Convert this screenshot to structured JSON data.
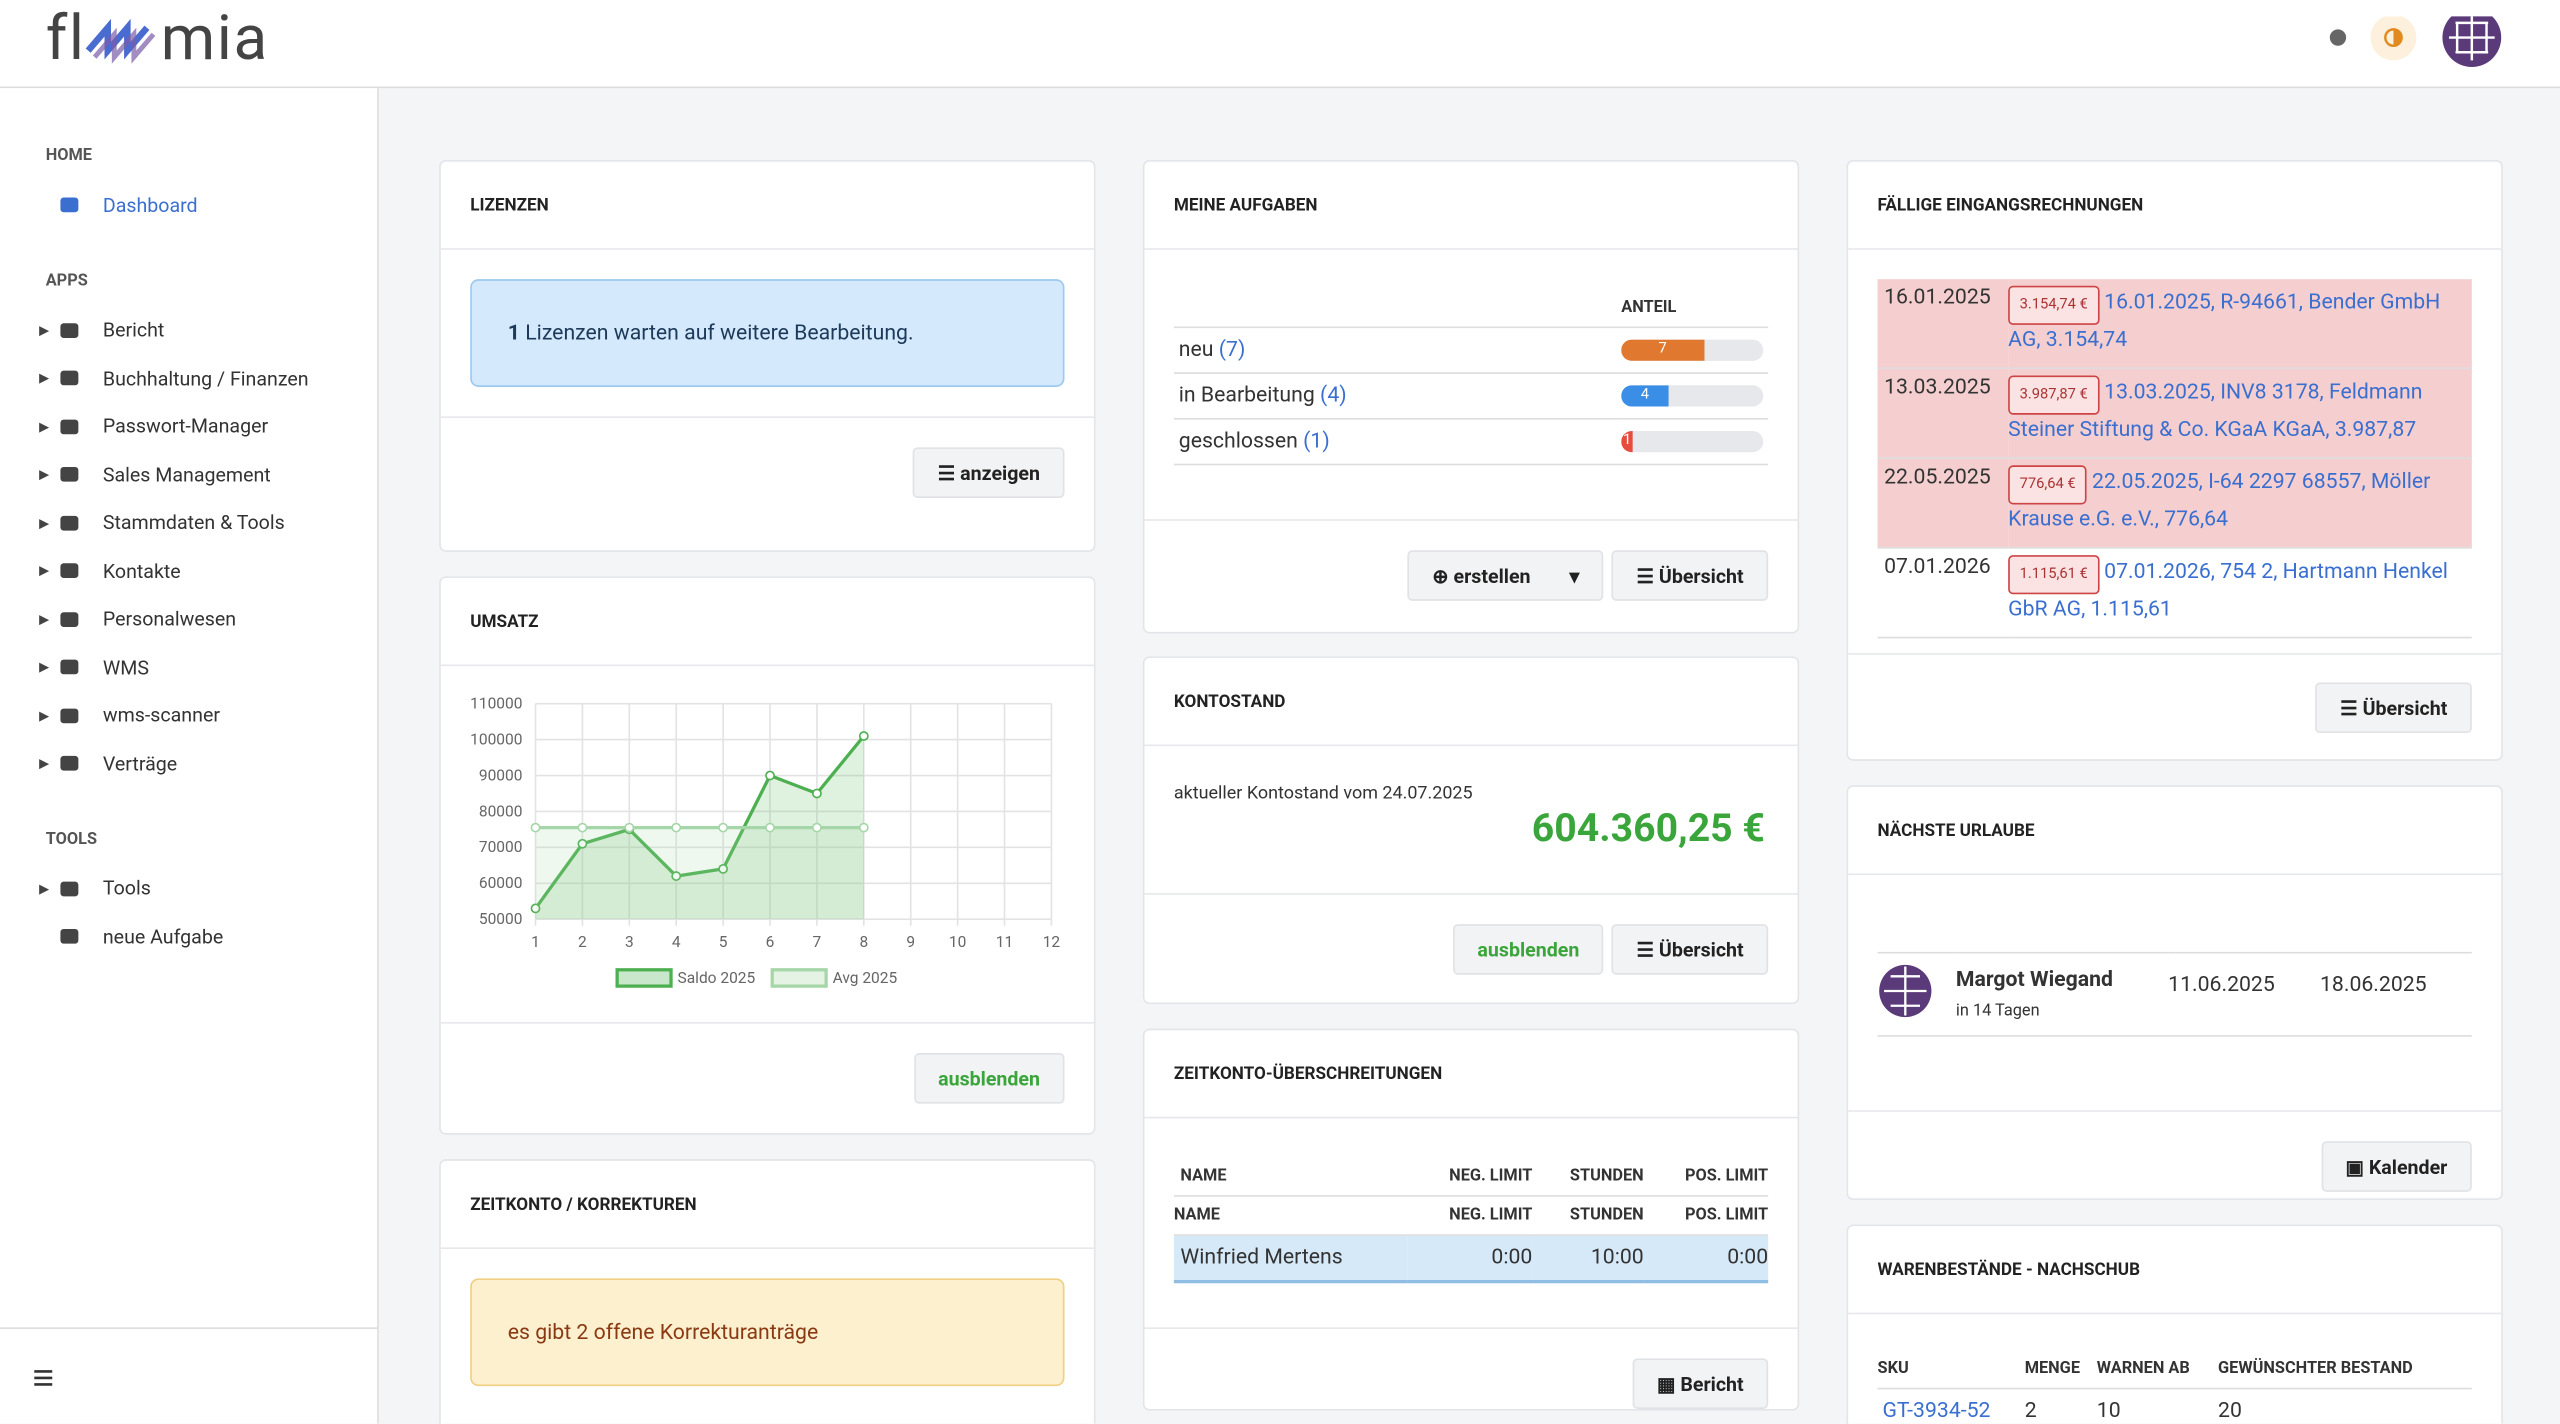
{
  "header": {
    "logo": {
      "start": "fl",
      "end": "mia"
    }
  },
  "sidebar": {
    "sections": [
      {
        "title": "HOME",
        "items": [
          "Dashboard"
        ]
      },
      {
        "title": "APPS",
        "items": [
          "Bericht",
          "Buchhaltung / Finanzen",
          "Passwort-Manager",
          "Sales Management",
          "Stammdaten & Tools",
          "Kontakte",
          "Personalwesen",
          "WMS",
          "wms-scanner",
          "Verträge"
        ]
      },
      {
        "title": "TOOLS",
        "items": [
          "Tools",
          "neue Aufgabe"
        ]
      }
    ]
  },
  "lizenzen": {
    "title": "LIZENZEN",
    "count": "1",
    "text": "Lizenzen warten auf weitere Bearbeitung.",
    "button": "anzeigen"
  },
  "umsatz": {
    "title": "UMSATZ",
    "button": "ausblenden",
    "chart": {
      "type": "line",
      "x": [
        1,
        2,
        3,
        4,
        5,
        6,
        7,
        8
      ],
      "series": [
        {
          "name": "Saldo 2025",
          "color": "#4caf50",
          "values": [
            53000,
            71000,
            75000,
            62000,
            64000,
            90000,
            85000,
            101000
          ]
        },
        {
          "name": "Avg 2025",
          "color": "#a5d6a7",
          "values": [
            75500,
            75500,
            75500,
            75500,
            75500,
            75500,
            75500,
            75500
          ]
        }
      ],
      "xlim": [
        1,
        12
      ],
      "xticks": [
        1,
        2,
        3,
        4,
        5,
        6,
        7,
        8,
        9,
        10,
        11,
        12
      ],
      "ylim": [
        50000,
        110000
      ],
      "yticks": [
        50000,
        60000,
        70000,
        80000,
        90000,
        100000,
        110000
      ],
      "grid": true
    }
  },
  "korrekturen": {
    "title": "ZEITKONTO / KORREKTUREN",
    "text": "es gibt 2 offene Korrekturanträge"
  },
  "aufgaben": {
    "title": "MEINE AUFGABEN",
    "column": "ANTEIL",
    "rows": [
      {
        "label": "neu",
        "count": 7,
        "color": "#e0782f"
      },
      {
        "label": "in Bearbeitung",
        "count": 4,
        "color": "#3a8ee6"
      },
      {
        "label": "geschlossen",
        "count": 1,
        "color": "#e74c3c"
      }
    ],
    "buttons": [
      "erstellen",
      "Übersicht"
    ]
  },
  "kontostand": {
    "title": "KONTOSTAND",
    "label": "aktueller Kontostand vom 24.07.2025",
    "amount": "604.360,25 €",
    "buttons": [
      "ausblenden",
      "Übersicht"
    ]
  },
  "zeitkonto": {
    "title": "ZEITKONTO-ÜBERSCHREITUNGEN",
    "columns": [
      "NAME",
      "NEG. LIMIT",
      "STUNDEN",
      "POS. LIMIT"
    ],
    "rows": [
      [
        "Winfried Mertens",
        "0:00",
        "10:00",
        "0:00"
      ]
    ],
    "button": "Bericht"
  },
  "rechnungen": {
    "title": "FÄLLIGE EINGANGSRECHNUNGEN",
    "rows": [
      {
        "date": "16.01.2025",
        "amount": "3.154,74 €",
        "text": "16.01.2025, R-94661, Bender GmbH AG, 3.154,74",
        "overdue": true
      },
      {
        "date": "13.03.2025",
        "amount": "3.987,87 €",
        "text": "13.03.2025, INV8 3178, Feldmann Steiner Stiftung & Co. KGaA KGaA, 3.987,87",
        "overdue": true
      },
      {
        "date": "22.05.2025",
        "amount": "776,64 €",
        "text": "22.05.2025, I-64 2297 68557, Möller Krause e.G. e.V., 776,64",
        "overdue": true
      },
      {
        "date": "07.01.2026",
        "amount": "1.115,61 €",
        "text": "07.01.2026, 754 2, Hartmann Henkel GbR AG, 1.115,61",
        "overdue": false
      }
    ],
    "button": "Übersicht"
  },
  "urlaube": {
    "title": "NÄCHSTE URLAUBE",
    "rows": [
      {
        "name": "Margot Wiegand",
        "note": "in 14 Tagen",
        "from": "11.06.2025",
        "to": "18.06.2025"
      }
    ],
    "button": "Kalender"
  },
  "waren": {
    "title": "WARENBESTÄNDE - NACHSCHUB",
    "columns": [
      "SKU",
      "MENGE",
      "WARNEN AB",
      "GEWÜNSCHTER BESTAND"
    ],
    "rows": [
      [
        "GT-3934-52",
        "2",
        "10",
        "20"
      ]
    ]
  }
}
